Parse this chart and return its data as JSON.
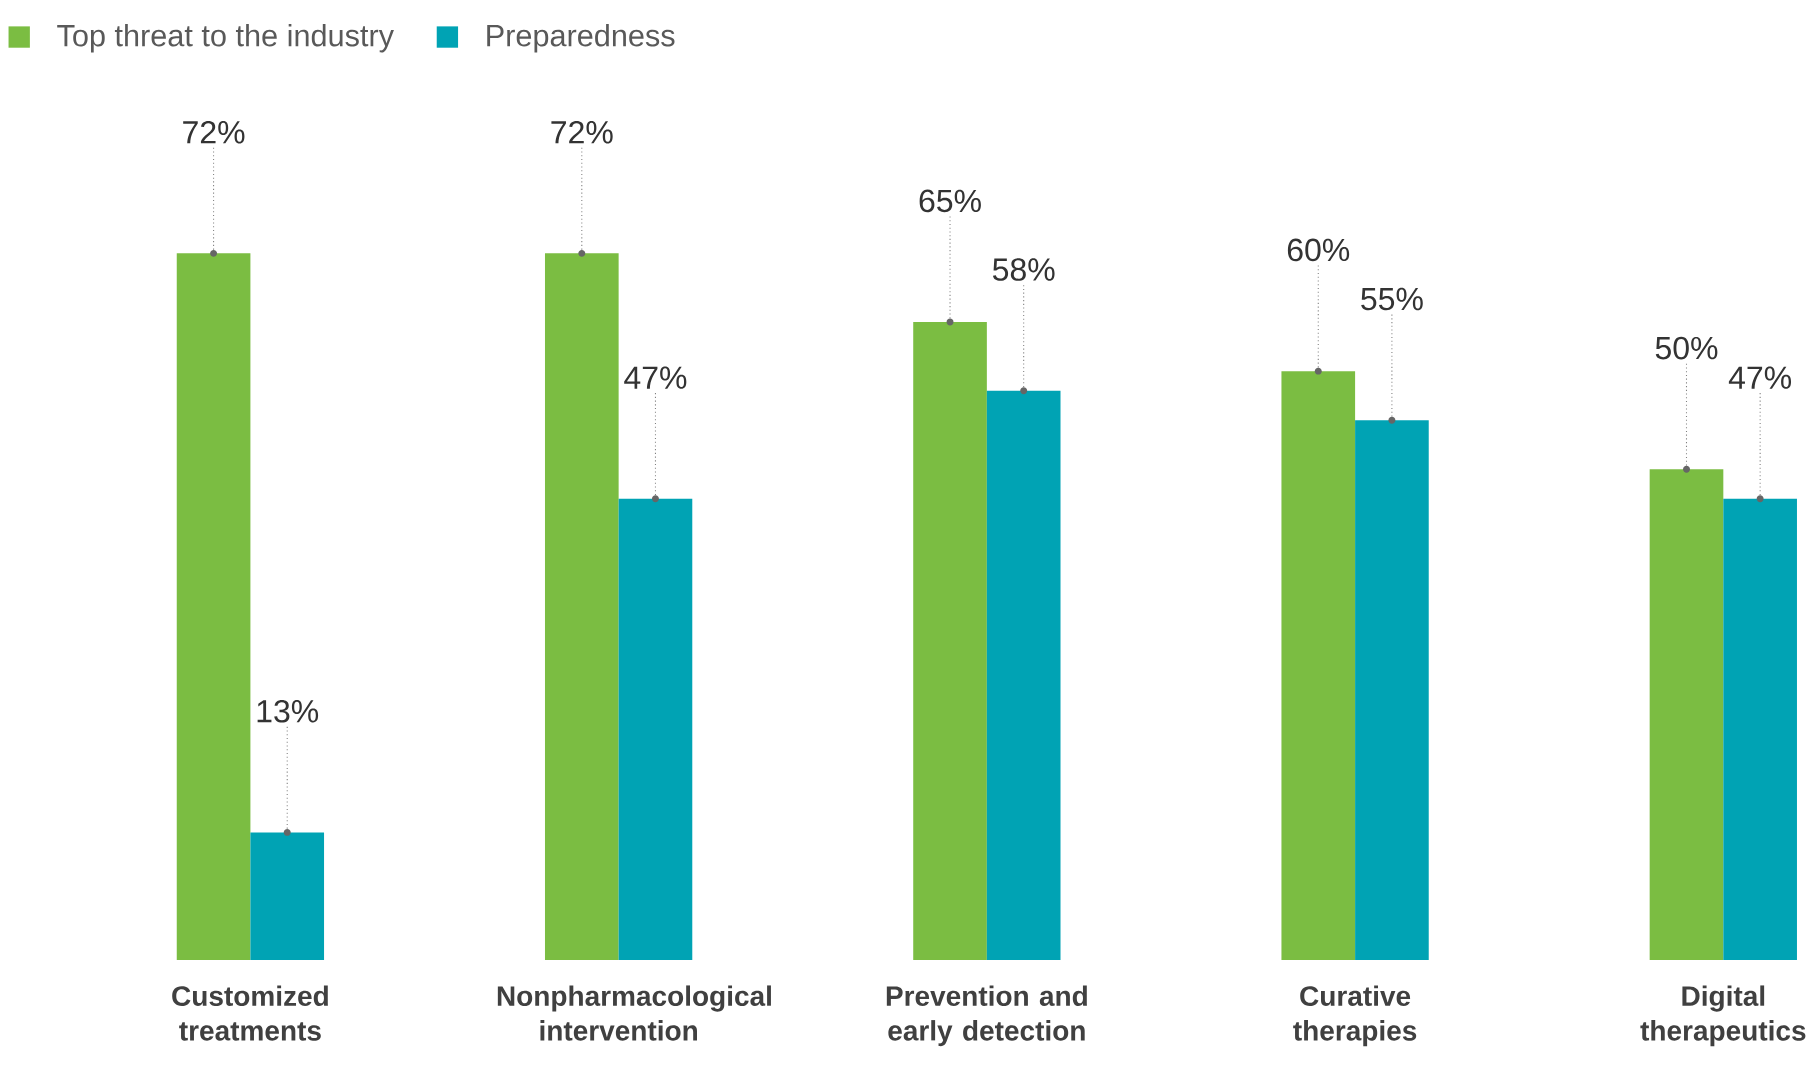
{
  "chart_data": {
    "type": "bar",
    "categories": [
      "Customized treatments",
      "Nonpharmacological intervention",
      "Prevention and early detection",
      "Curative therapies",
      "Digital therapeutics"
    ],
    "series": [
      {
        "name": "Top threat to the industry",
        "color": "#7bbd42",
        "values": [
          72,
          72,
          65,
          60,
          50
        ],
        "value_labels": [
          "72%",
          "72%",
          "65%",
          "60%",
          "50%"
        ]
      },
      {
        "name": "Preparedness",
        "color": "#00a3b4",
        "values": [
          13,
          47,
          58,
          55,
          47
        ],
        "value_labels": [
          "13%",
          "47%",
          "58%",
          "55%",
          "47%"
        ]
      }
    ],
    "legend": "top left"
  }
}
